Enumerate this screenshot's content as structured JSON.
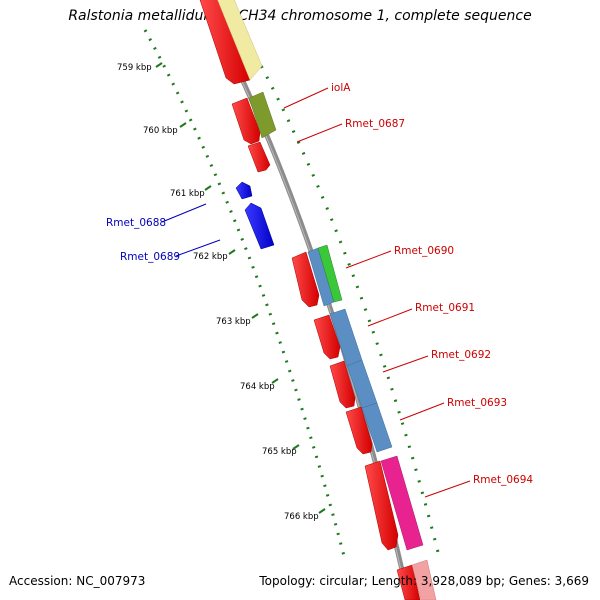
{
  "title": "Ralstonia metallidurans CH34 chromosome 1, complete sequence",
  "footer": {
    "accession": "Accession: NC_007973",
    "summary": "Topology: circular; Length: 3,928,089 bp; Genes: 3,669"
  },
  "colors": {
    "background": "#ffffff",
    "backbone": "#8a8a8a",
    "scale_dots": "#1f7a1f",
    "cds_forward": "#ee1111",
    "cds_reverse": "#1111dd",
    "label_forward": "#cc0000",
    "label_reverse": "#0000bb"
  },
  "scale": {
    "unit": "kbp",
    "ticks": [
      {
        "label": "759 kbp"
      },
      {
        "label": "760 kbp"
      },
      {
        "label": "761 kbp"
      },
      {
        "label": "762 kbp"
      },
      {
        "label": "763 kbp"
      },
      {
        "label": "764 kbp"
      },
      {
        "label": "765 kbp"
      },
      {
        "label": "766 kbp"
      }
    ]
  },
  "gene_labels": [
    {
      "text": "iolA",
      "strand": "forward"
    },
    {
      "text": "Rmet_0687",
      "strand": "forward"
    },
    {
      "text": "Rmet_0688",
      "strand": "reverse"
    },
    {
      "text": "Rmet_0689",
      "strand": "reverse"
    },
    {
      "text": "Rmet_0690",
      "strand": "forward"
    },
    {
      "text": "Rmet_0691",
      "strand": "forward"
    },
    {
      "text": "Rmet_0692",
      "strand": "forward"
    },
    {
      "text": "Rmet_0693",
      "strand": "forward"
    },
    {
      "text": "Rmet_0694",
      "strand": "forward"
    }
  ],
  "feature_tracks": [
    {
      "name": "cds-forward",
      "color": "#ee1111"
    },
    {
      "name": "cds-reverse",
      "color": "#1111dd"
    },
    {
      "name": "cog-functional-category",
      "color": "#4f8fc8"
    }
  ]
}
